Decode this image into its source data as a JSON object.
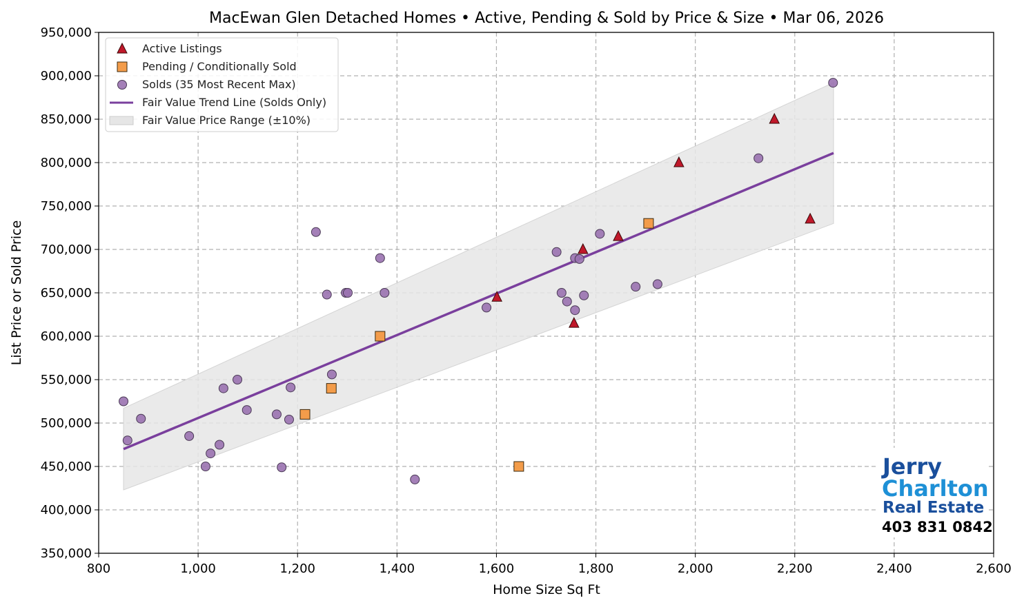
{
  "chart_data": {
    "type": "scatter",
    "title": "MacEwan Glen Detached Homes • Active, Pending & Sold by Price & Size • Mar 06, 2026",
    "xlabel": "Home Size Sq Ft",
    "ylabel": "List Price or Sold Price",
    "xlim": [
      800,
      2600
    ],
    "ylim": [
      350000,
      950000
    ],
    "xticks": [
      800,
      1000,
      1200,
      1400,
      1600,
      1800,
      2000,
      2200,
      2400,
      2600
    ],
    "xtick_labels": [
      "800",
      "1,000",
      "1,200",
      "1,400",
      "1,600",
      "1,800",
      "2,000",
      "2,200",
      "2,400",
      "2,600"
    ],
    "yticks": [
      350000,
      400000,
      450000,
      500000,
      550000,
      600000,
      650000,
      700000,
      750000,
      800000,
      850000,
      900000,
      950000
    ],
    "ytick_labels": [
      "350,000",
      "400,000",
      "450,000",
      "500,000",
      "550,000",
      "600,000",
      "650,000",
      "700,000",
      "750,000",
      "800,000",
      "850,000",
      "900,000",
      "950,000"
    ],
    "grid": true,
    "legend_position": "top-left",
    "series": [
      {
        "name": "Active Listings",
        "marker": "triangle",
        "color": "#c0182a",
        "points": [
          [
            1601,
            645000
          ],
          [
            1756,
            615000
          ],
          [
            1774,
            700000
          ],
          [
            1845,
            715000
          ],
          [
            1967,
            800000
          ],
          [
            2159,
            850000
          ],
          [
            2231,
            735000
          ]
        ]
      },
      {
        "name": "Pending / Conditionally Sold",
        "marker": "square",
        "color": "#f39c4a",
        "points": [
          [
            1215,
            510000
          ],
          [
            1268,
            540000
          ],
          [
            1366,
            600000
          ],
          [
            1645,
            450000
          ],
          [
            1906,
            730000
          ]
        ]
      },
      {
        "name": "Solds (35 Most Recent Max)",
        "marker": "circle",
        "color": "#9a72b0",
        "points": [
          [
            850,
            525000
          ],
          [
            858,
            480000
          ],
          [
            885,
            505000
          ],
          [
            982,
            485000
          ],
          [
            1015,
            450000
          ],
          [
            1025,
            465000
          ],
          [
            1043,
            475000
          ],
          [
            1051,
            540000
          ],
          [
            1079,
            550000
          ],
          [
            1098,
            515000
          ],
          [
            1158,
            510000
          ],
          [
            1168,
            449000
          ],
          [
            1183,
            504000
          ],
          [
            1186,
            541000
          ],
          [
            1237,
            720000
          ],
          [
            1259,
            648000
          ],
          [
            1269,
            556000
          ],
          [
            1297,
            650000
          ],
          [
            1301,
            650000
          ],
          [
            1366,
            690000
          ],
          [
            1375,
            650000
          ],
          [
            1436,
            435000
          ],
          [
            1580,
            633000
          ],
          [
            1721,
            697000
          ],
          [
            1731,
            650000
          ],
          [
            1742,
            640000
          ],
          [
            1758,
            690000
          ],
          [
            1767,
            689000
          ],
          [
            1758,
            630000
          ],
          [
            1776,
            647000
          ],
          [
            1808,
            718000
          ],
          [
            1880,
            657000
          ],
          [
            1924,
            660000
          ],
          [
            2127,
            805000
          ],
          [
            2277,
            892000
          ]
        ]
      },
      {
        "name": "Fair Value Trend Line (Solds Only)",
        "type": "line",
        "color": "#7a3f9d",
        "points": [
          [
            850,
            470000
          ],
          [
            2278,
            811000
          ]
        ]
      },
      {
        "name": "Fair Value Price Range (±10%)",
        "type": "band",
        "color": "#e6e6e6",
        "band_pct": 10
      }
    ]
  },
  "logo": {
    "line1": "Jerry",
    "line2": "Charlton",
    "line3": "Real Estate",
    "phone": "403 831 0842"
  }
}
